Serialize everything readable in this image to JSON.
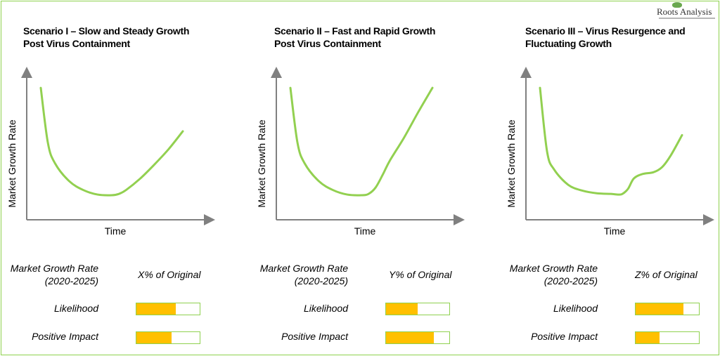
{
  "brand": {
    "name": "Roots Analysis"
  },
  "colors": {
    "curve": "#92d050",
    "bar_fill": "#ffc000",
    "bar_border": "#8fd14f",
    "frame": "#8fd14f",
    "axis": "#808080"
  },
  "row_labels": {
    "growth_line1": "Market Growth Rate",
    "growth_line2": "(2020-2025)",
    "likelihood": "Likelihood",
    "impact": "Positive Impact"
  },
  "axes": {
    "ylabel": "Market Growth Rate",
    "xlabel": "Time"
  },
  "chart_data": [
    {
      "type": "line",
      "title_line1": "Scenario I – Slow and Steady Growth",
      "title_line2": "Post Virus Containment",
      "xlabel": "Time",
      "ylabel": "Market Growth Rate",
      "x": [
        0,
        0.05,
        0.1,
        0.2,
        0.3,
        0.4,
        0.5,
        0.55,
        0.6,
        0.7,
        0.8,
        0.9,
        1.0
      ],
      "y": [
        0.95,
        0.52,
        0.36,
        0.22,
        0.15,
        0.115,
        0.11,
        0.12,
        0.15,
        0.24,
        0.35,
        0.47,
        0.61
      ],
      "growth_value": "X% of Original",
      "likelihood": 0.62,
      "positive_impact": 0.55
    },
    {
      "type": "line",
      "title_line1": "Scenario II – Fast and Rapid Growth",
      "title_line2": "Post Virus Containment",
      "xlabel": "Time",
      "ylabel": "Market Growth Rate",
      "x": [
        0,
        0.05,
        0.1,
        0.2,
        0.3,
        0.4,
        0.5,
        0.55,
        0.6,
        0.65,
        0.7,
        0.8,
        0.9,
        1.0
      ],
      "y": [
        0.95,
        0.52,
        0.36,
        0.22,
        0.15,
        0.115,
        0.11,
        0.12,
        0.17,
        0.27,
        0.38,
        0.56,
        0.76,
        0.95
      ],
      "growth_value": "Y% of Original",
      "likelihood": 0.5,
      "positive_impact": 0.75
    },
    {
      "type": "line",
      "title_line1": "Scenario III – Virus Resurgence and",
      "title_line2": "Fluctuating Growth",
      "xlabel": "Time",
      "ylabel": "Market Growth Rate",
      "x": [
        0,
        0.05,
        0.1,
        0.2,
        0.3,
        0.4,
        0.5,
        0.55,
        0.58,
        0.62,
        0.66,
        0.72,
        0.8,
        0.86,
        0.92,
        1.0
      ],
      "y": [
        0.95,
        0.45,
        0.31,
        0.19,
        0.145,
        0.125,
        0.12,
        0.115,
        0.12,
        0.16,
        0.24,
        0.275,
        0.29,
        0.33,
        0.42,
        0.58
      ],
      "growth_value": "Z% of Original",
      "likelihood": 0.75,
      "positive_impact": 0.38
    }
  ]
}
